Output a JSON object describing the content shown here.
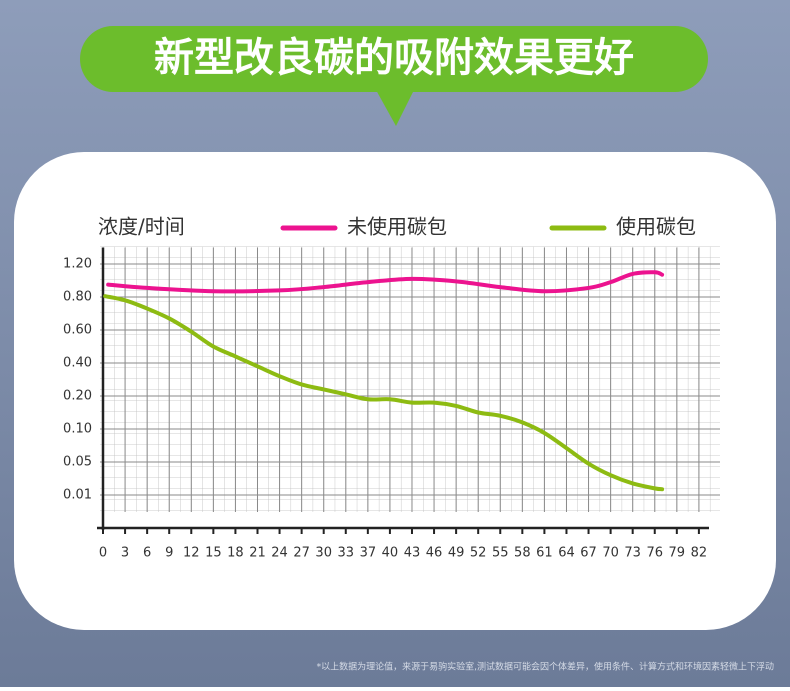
{
  "header": {
    "title": "新型改良碳的吸附效果更好"
  },
  "chart_data": {
    "type": "line",
    "ylabel": "浓度/时间",
    "legend": "top",
    "grid": true,
    "xlim": [
      0,
      85
    ],
    "xticks": [
      0,
      3,
      6,
      9,
      12,
      15,
      18,
      21,
      24,
      27,
      30,
      33,
      37,
      40,
      43,
      46,
      49,
      52,
      55,
      58,
      61,
      64,
      67,
      70,
      73,
      76,
      79,
      82
    ],
    "ylim": [
      0,
      1.4
    ],
    "yticks": [
      {
        "value": 0.01,
        "label": "0.01"
      },
      {
        "value": 0.05,
        "label": "0.05"
      },
      {
        "value": 0.1,
        "label": "0.10"
      },
      {
        "value": 0.2,
        "label": "0.20"
      },
      {
        "value": 0.4,
        "label": "0.40"
      },
      {
        "value": 0.6,
        "label": "0.60"
      },
      {
        "value": 0.8,
        "label": "0.80"
      },
      {
        "value": 1.2,
        "label": "1.20"
      }
    ],
    "series": [
      {
        "name": "未使用碳包",
        "color": "#ec138f",
        "x": [
          0.7,
          6,
          15,
          24,
          30,
          37,
          43,
          49,
          55,
          61,
          67,
          70,
          73,
          76,
          77
        ],
        "values": [
          0.95,
          0.91,
          0.87,
          0.88,
          0.92,
          0.98,
          1.02,
          0.99,
          0.92,
          0.87,
          0.91,
          0.98,
          1.08,
          1.1,
          1.07
        ]
      },
      {
        "name": "使用碳包",
        "color": "#8dbb12",
        "x": [
          0.3,
          3,
          6,
          9,
          12,
          15,
          18,
          21,
          24,
          27,
          30,
          33,
          37,
          40,
          43,
          46,
          49,
          52,
          55,
          58,
          61,
          64,
          67,
          70,
          73,
          76,
          77
        ],
        "values": [
          0.81,
          0.78,
          0.73,
          0.67,
          0.59,
          0.5,
          0.44,
          0.38,
          0.32,
          0.27,
          0.24,
          0.21,
          0.19,
          0.19,
          0.18,
          0.18,
          0.17,
          0.15,
          0.14,
          0.12,
          0.094,
          0.071,
          0.048,
          0.034,
          0.024,
          0.018,
          0.017
        ]
      }
    ]
  },
  "footnote": "*以上数据为理论值，来源于易驹实验室,测试数据可能会因个体差异，使用条件、计算方式和环境因素轻微上下浮动"
}
